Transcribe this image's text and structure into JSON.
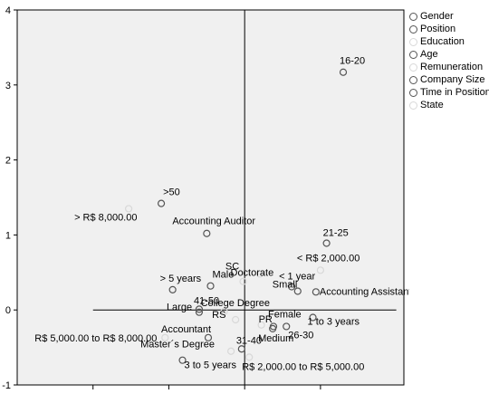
{
  "chart_data": {
    "type": "scatter",
    "title": "",
    "xlabel": "",
    "ylabel": "",
    "xlim": [
      -3,
      2.1
    ],
    "ylim": [
      -1,
      4
    ],
    "x_ticks": [
      -2,
      -1,
      0,
      1
    ],
    "y_ticks": [
      -1,
      0,
      1,
      2,
      3,
      4
    ],
    "grid": false,
    "legend_position": "right",
    "plot_background": "#f0f0f0",
    "series": [
      {
        "name": "Gender",
        "color": "#555555",
        "points": [
          {
            "label": "Male",
            "x": -0.45,
            "y": 0.32
          },
          {
            "label": "Female",
            "x": 0.38,
            "y": -0.22
          }
        ]
      },
      {
        "name": "Position",
        "color": "#555555",
        "points": [
          {
            "label": "Accounting Auditor",
            "x": -0.5,
            "y": 1.02
          },
          {
            "label": "Accountant",
            "x": -0.48,
            "y": -0.37
          },
          {
            "label": "Accounting Assistant",
            "x": 0.94,
            "y": 0.24
          }
        ]
      },
      {
        "name": "Education",
        "color": "#d8d8d8",
        "points": [
          {
            "label": "Doctorate",
            "x": -0.02,
            "y": 0.38
          },
          {
            "label": "College Degree",
            "x": -0.27,
            "y": -0.02
          },
          {
            "label": "Master´s Degree",
            "x": -0.18,
            "y": -0.55
          }
        ]
      },
      {
        "name": "Age",
        "color": "#555555",
        "points": [
          {
            "label": "16-20",
            "x": 1.3,
            "y": 3.17
          },
          {
            "label": ">50",
            "x": -1.1,
            "y": 1.42
          },
          {
            "label": "21-25",
            "x": 1.08,
            "y": 0.89
          },
          {
            "label": "41-50",
            "x": -0.6,
            "y": 0.01
          },
          {
            "label": "31-40",
            "x": -0.04,
            "y": -0.52
          },
          {
            "label": "26-30",
            "x": 0.55,
            "y": -0.22
          }
        ]
      },
      {
        "name": "Remuneration",
        "color": "#d8d8d8",
        "points": [
          {
            "label": "> R$ 8,000.00",
            "x": -1.53,
            "y": 1.35
          },
          {
            "label": "< R$ 2,000.00",
            "x": 1.0,
            "y": 0.53
          },
          {
            "label": "R$ 5,000.00 to R$ 8,000.00",
            "x": -1.05,
            "y": -0.37
          },
          {
            "label": "R$ 2,000.00 to R$ 5,000.00",
            "x": 0.06,
            "y": -0.63
          }
        ]
      },
      {
        "name": "Company Size",
        "color": "#555555",
        "points": [
          {
            "label": "Large",
            "x": -0.6,
            "y": -0.03
          },
          {
            "label": "Small",
            "x": 0.7,
            "y": 0.25
          },
          {
            "label": "Medium",
            "x": 0.37,
            "y": -0.25
          }
        ]
      },
      {
        "name": "Time in Position",
        "color": "#555555",
        "points": [
          {
            "label": "> 5 years",
            "x": -0.95,
            "y": 0.27
          },
          {
            "label": "< 1 year",
            "x": 0.62,
            "y": 0.31
          },
          {
            "label": "1 to 3 years",
            "x": 0.9,
            "y": -0.1
          },
          {
            "label": "3 to 5 years",
            "x": -0.82,
            "y": -0.67
          }
        ]
      },
      {
        "name": "State",
        "color": "#d8d8d8",
        "points": [
          {
            "label": "SC",
            "x": 0.2,
            "y": 0.48
          },
          {
            "label": "RS",
            "x": -0.12,
            "y": -0.13
          },
          {
            "label": "PR",
            "x": 0.22,
            "y": -0.2
          }
        ]
      }
    ]
  }
}
